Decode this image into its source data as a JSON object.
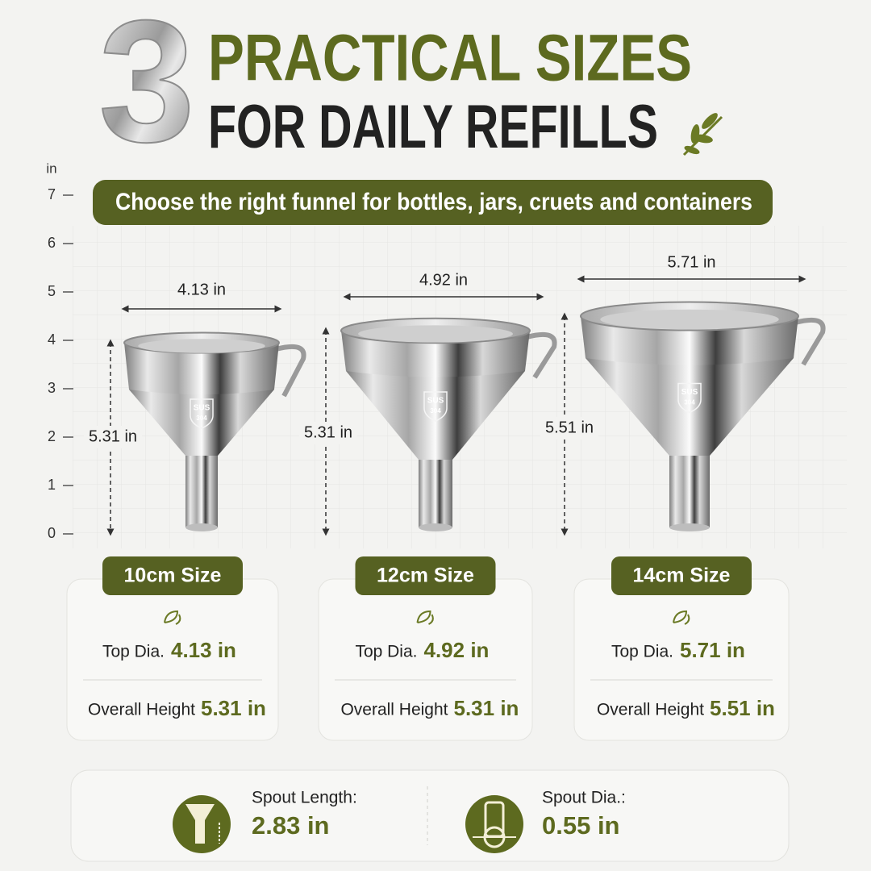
{
  "header": {
    "number": "3",
    "line1": "PRACTICAL SIZES",
    "line2": "FOR DAILY REFILLS"
  },
  "subtitle": "Choose the right funnel for bottles, jars, cruets and containers",
  "scale": {
    "unit": "in",
    "ticks": [
      0,
      1,
      2,
      3,
      4,
      5,
      6,
      7
    ]
  },
  "badge": {
    "top": "SUS",
    "bottom": "304"
  },
  "funnels": [
    {
      "width_label": "4.13 in",
      "height_label": "5.31 in"
    },
    {
      "width_label": "4.92 in",
      "height_label": "5.31 in"
    },
    {
      "width_label": "5.71 in",
      "height_label": "5.51 in"
    }
  ],
  "cards": [
    {
      "size": "10cm Size",
      "top_label": "Top Dia.",
      "top_value": "4.13 in",
      "height_label": "Overall Height",
      "height_value": "5.31 in"
    },
    {
      "size": "12cm Size",
      "top_label": "Top Dia.",
      "top_value": "4.92 in",
      "height_label": "Overall Height",
      "height_value": "5.31 in"
    },
    {
      "size": "14cm Size",
      "top_label": "Top Dia.",
      "top_value": "5.71 in",
      "height_label": "Overall Height",
      "height_value": "5.51 in"
    }
  ],
  "spout": [
    {
      "label": "Spout Length:",
      "value": "2.83 in"
    },
    {
      "label": "Spout Dia.:",
      "value": "0.55 in"
    }
  ]
}
